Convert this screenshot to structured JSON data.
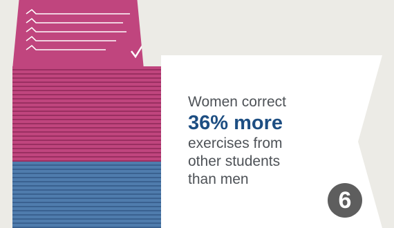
{
  "callout": {
    "line1": "Women correct",
    "highlight": "36% more",
    "line3": "exercises from",
    "line4": "other students",
    "line5": "than men"
  },
  "badge": "6",
  "colors": {
    "pink": "#c0457e",
    "pink_dark": "#9a2f61",
    "blue": "#4f7cad",
    "blue_dark": "#3a6190",
    "highlight": "#1d4e82"
  },
  "icons": [
    "paper-stack-icon",
    "checkmark-icon",
    "scribble-lines-icon"
  ]
}
